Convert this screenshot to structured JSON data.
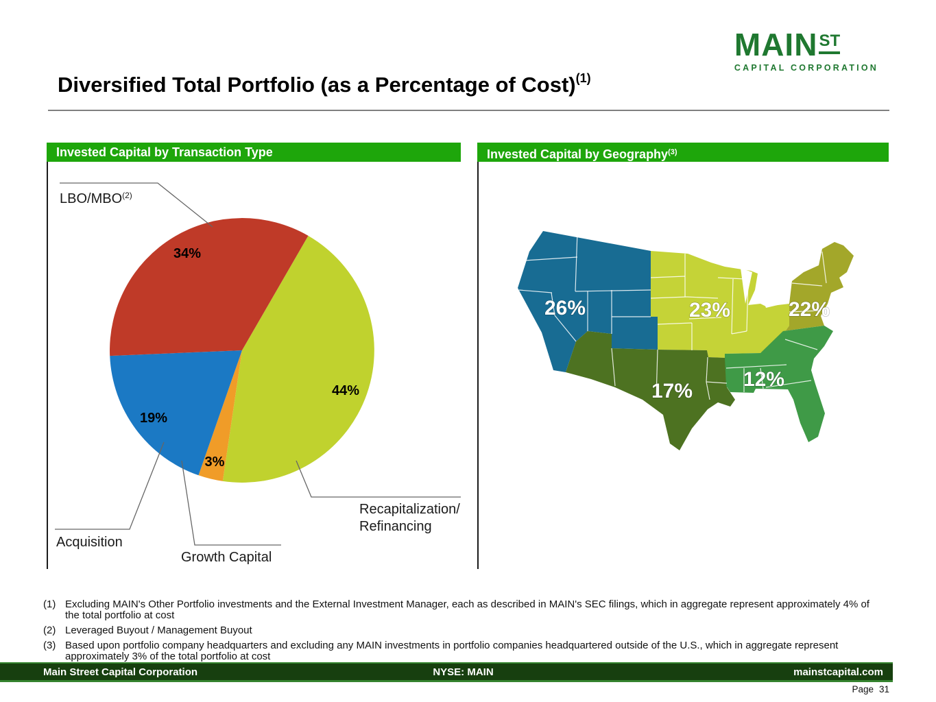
{
  "logo": {
    "main": "MAIN",
    "st": "ST",
    "sub": "CAPITAL CORPORATION",
    "color": "#1f7830"
  },
  "title": {
    "text": "Diversified Total Portfolio (as a Percentage of Cost)",
    "footnote_marker": "(1)"
  },
  "panels": {
    "transaction_type": {
      "header": "Invested Capital by Transaction Type",
      "labels": {
        "lbo": "LBO/MBO",
        "lbo_sup": "(2)",
        "acquisition": "Acquisition",
        "growth": "Growth Capital",
        "recap_line1": "Recapitalization/",
        "recap_line2": "Refinancing"
      }
    },
    "geography": {
      "header": "Invested Capital by Geography",
      "header_sup": "(3)"
    }
  },
  "chart_data": [
    {
      "type": "pie",
      "title": "Invested Capital by Transaction Type",
      "units": "percent of total portfolio at cost",
      "start_angle_deg": 30,
      "clockwise": true,
      "slices": [
        {
          "label": "Recapitalization/Refinancing",
          "value": 44,
          "value_label": "44%",
          "color": "#c0d22e"
        },
        {
          "label": "Growth Capital",
          "value": 3,
          "value_label": "3%",
          "color": "#f09c28"
        },
        {
          "label": "Acquisition",
          "value": 19,
          "value_label": "19%",
          "color": "#1b79c4"
        },
        {
          "label": "LBO/MBO",
          "value": 34,
          "value_label": "34%",
          "color": "#bf3a28"
        }
      ]
    },
    {
      "type": "map",
      "title": "Invested Capital by Geography",
      "units": "percent of total portfolio at cost",
      "regions": [
        {
          "name": "West",
          "value": 26,
          "value_label": "26%",
          "color": "#186c93"
        },
        {
          "name": "Midwest",
          "value": 23,
          "value_label": "23%",
          "color": "#c5d337"
        },
        {
          "name": "Northeast",
          "value": 22,
          "value_label": "22%",
          "color": "#a3a72a"
        },
        {
          "name": "Southwest",
          "value": 17,
          "value_label": "17%",
          "color": "#4d7221"
        },
        {
          "name": "Southeast",
          "value": 12,
          "value_label": "12%",
          "color": "#3f9a47"
        }
      ]
    }
  ],
  "footnotes": [
    {
      "marker": "(1)",
      "text": "Excluding MAIN's Other Portfolio investments and the External Investment Manager, each as described in MAIN's SEC filings, which in aggregate represent approximately 4% of the total portfolio at cost"
    },
    {
      "marker": "(2)",
      "text": "Leveraged Buyout / Management Buyout"
    },
    {
      "marker": "(3)",
      "text": "Based upon portfolio company headquarters and excluding any MAIN investments in portfolio companies headquartered outside of the U.S., which in aggregate represent approximately 3% of the total portfolio at cost"
    }
  ],
  "footer": {
    "left": "Main Street Capital Corporation",
    "center": "NYSE: MAIN",
    "right": "mainstcapital.com",
    "page_label": "Page",
    "page_number": "31"
  }
}
